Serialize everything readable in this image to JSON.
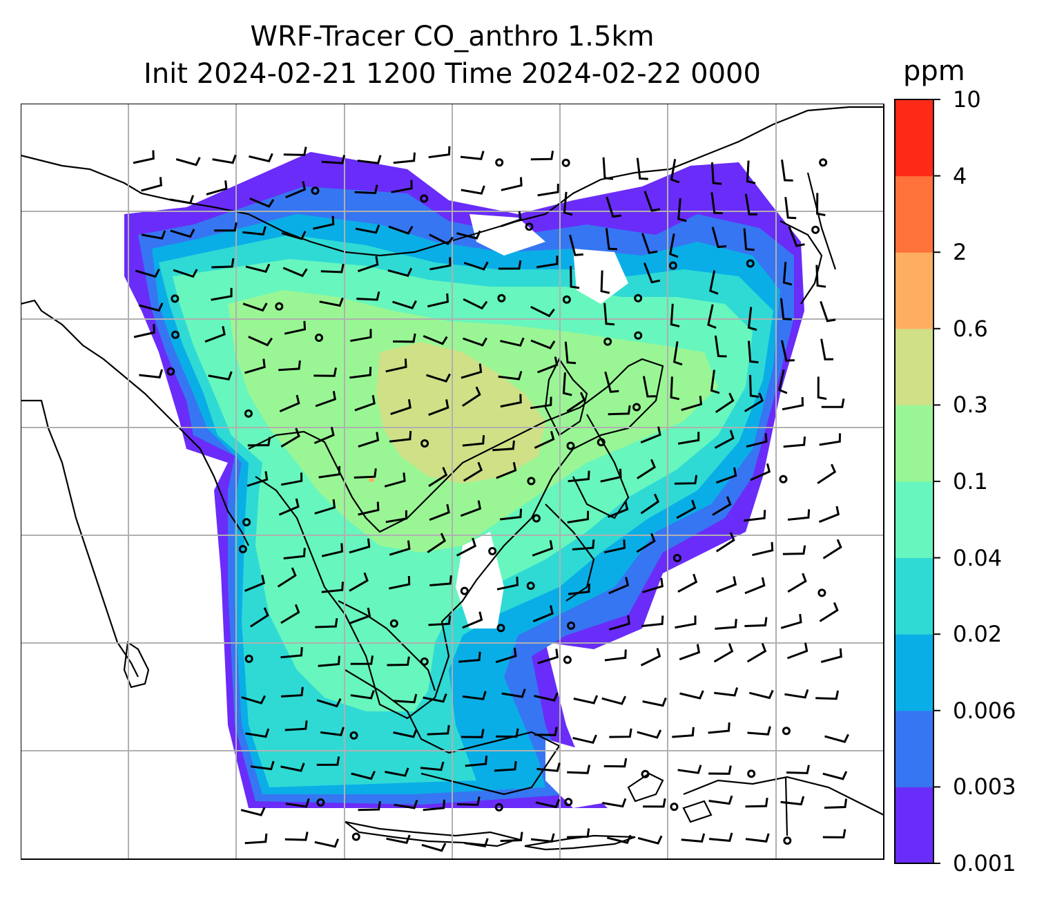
{
  "title": {
    "line1": "WRF-Tracer CO_anthro 1.5km",
    "line2": "Init 2024-02-21 1200 Time 2024-02-22 0000"
  },
  "colorbar": {
    "unit": "ppm",
    "levels": [
      "0.001",
      "0.003",
      "0.006",
      "0.02",
      "0.04",
      "0.1",
      "0.3",
      "0.6",
      "2",
      "4",
      "10"
    ],
    "colors": [
      "#6a2cf8",
      "#3676f2",
      "#0aaee6",
      "#2fdad5",
      "#67f6bd",
      "#9af695",
      "#cfe087",
      "#ffad60",
      "#ff723a",
      "#fe2a18"
    ]
  },
  "map": {
    "background": "#ffffff",
    "gridline_color": "#b0b0b0",
    "coastline_color": "#000000",
    "wind_barb_color": "#000000"
  }
}
